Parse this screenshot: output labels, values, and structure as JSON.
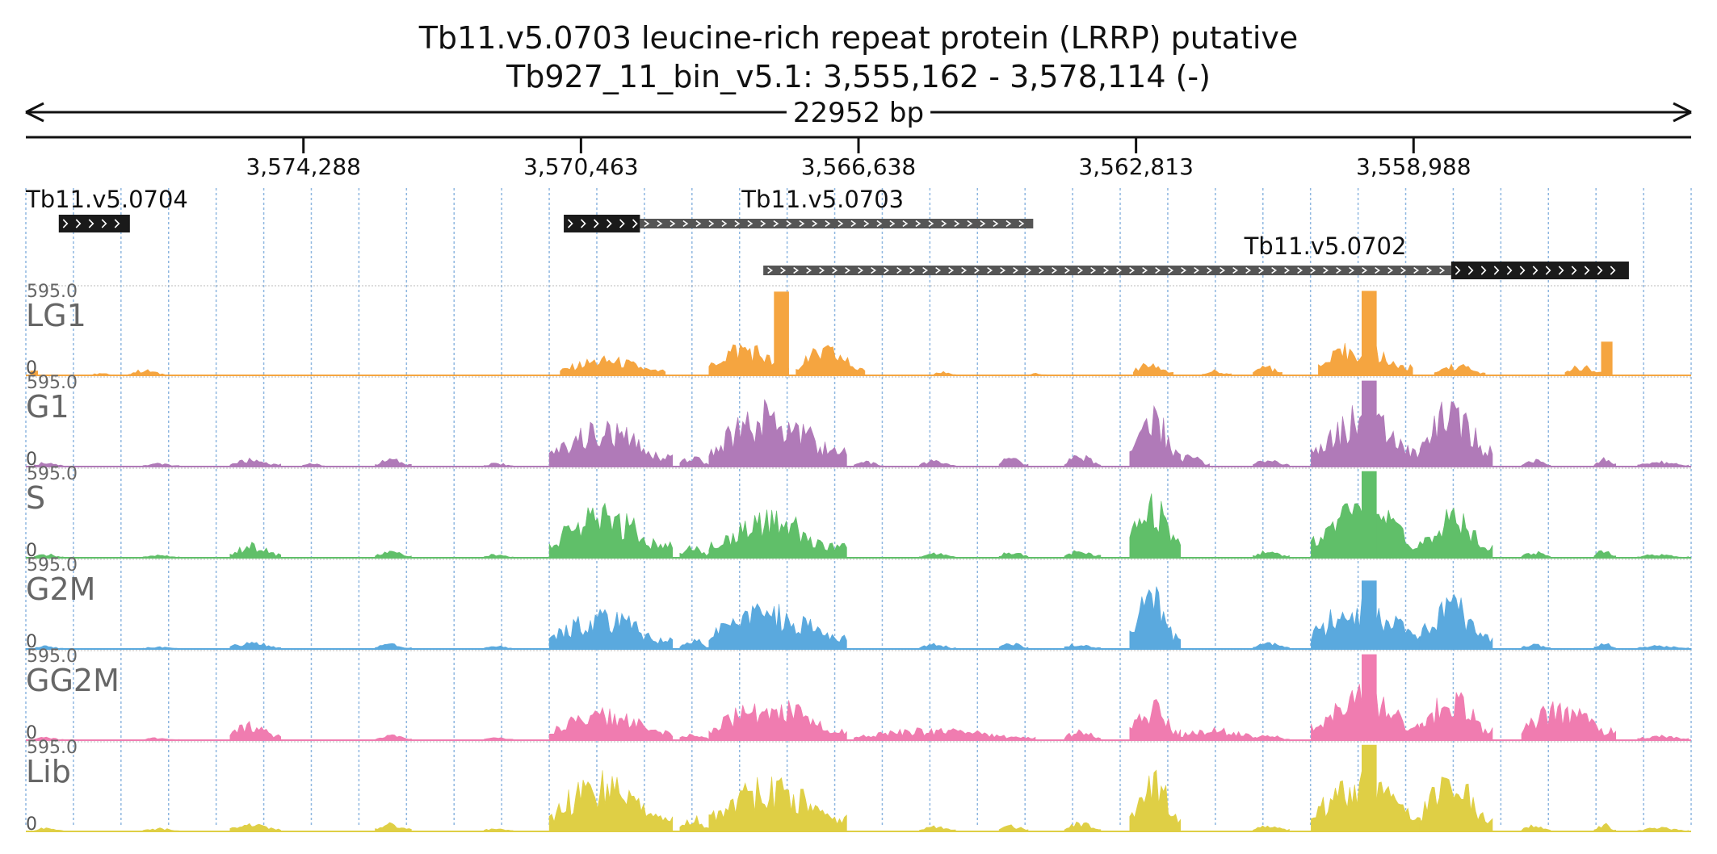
{
  "title": {
    "line1": "Tb11.v5.0703  leucine-rich repeat protein (LRRP)  putative",
    "line2": "Tb927_11_bin_v5.1: 3,555,162 - 3,578,114 (-)"
  },
  "span_label": "22952 bp",
  "chart_data": {
    "type": "area",
    "genome_range": {
      "chromosome": "Tb927_11_bin_v5.1",
      "start": 3555162,
      "end": 3578114,
      "strand": "-"
    },
    "x_ticks": [
      {
        "label": "3,574,288",
        "pos": 3574288
      },
      {
        "label": "3,570,463",
        "pos": 3570463
      },
      {
        "label": "3,566,638",
        "pos": 3566638
      },
      {
        "label": "3,562,813",
        "pos": 3562813
      },
      {
        "label": "3,558,988",
        "pos": 3558988
      }
    ],
    "genes": [
      {
        "name": "Tb11.v5.0704",
        "start": 3577660,
        "end": 3576680,
        "label_row": 0,
        "segments": [
          {
            "kind": "cds",
            "start": 3577660,
            "end": 3576680
          }
        ]
      },
      {
        "name": "Tb11.v5.0703",
        "start": 3570700,
        "end": 3564230,
        "label_row": 0,
        "segments": [
          {
            "kind": "cds",
            "start": 3570700,
            "end": 3569650
          },
          {
            "kind": "utr",
            "start": 3569650,
            "end": 3564230
          }
        ]
      },
      {
        "name": "Tb11.v5.0702",
        "start": 3567950,
        "end": 3556020,
        "label_row": 1,
        "segments": [
          {
            "kind": "utr",
            "start": 3567950,
            "end": 3558470
          },
          {
            "kind": "cds",
            "start": 3558470,
            "end": 3556020
          }
        ]
      }
    ],
    "y_range": [
      0,
      595.0
    ],
    "tracks": [
      {
        "name": "LG1",
        "color": "#f5a540",
        "ymax_label": "595.0",
        "ymin_label": "0",
        "peaks": [
          {
            "start": 3577200,
            "end": 3576900,
            "height": 20
          },
          {
            "start": 3576700,
            "end": 3576200,
            "height": 45
          },
          {
            "start": 3578050,
            "end": 3577950,
            "height": 30
          },
          {
            "start": 3570750,
            "end": 3569300,
            "height": 140
          },
          {
            "start": 3568700,
            "end": 3567600,
            "height": 260
          },
          {
            "start": 3567800,
            "end": 3567600,
            "height": 575
          },
          {
            "start": 3567500,
            "end": 3566550,
            "height": 220
          },
          {
            "start": 3565600,
            "end": 3565300,
            "height": 30
          },
          {
            "start": 3564300,
            "end": 3564050,
            "height": 20
          },
          {
            "start": 3562850,
            "end": 3562300,
            "height": 120
          },
          {
            "start": 3561900,
            "end": 3561500,
            "height": 40
          },
          {
            "start": 3561200,
            "end": 3560800,
            "height": 80
          },
          {
            "start": 3560300,
            "end": 3559000,
            "height": 250
          },
          {
            "start": 3559700,
            "end": 3559500,
            "height": 580
          },
          {
            "start": 3558700,
            "end": 3558000,
            "height": 90
          },
          {
            "start": 3556900,
            "end": 3556400,
            "height": 80
          },
          {
            "start": 3556400,
            "end": 3556250,
            "height": 230
          }
        ]
      },
      {
        "name": "G1",
        "color": "#b07ab8",
        "ymax_label": "595.0",
        "ymin_label": "0",
        "peaks": [
          {
            "start": 3578000,
            "end": 3577600,
            "height": 40
          },
          {
            "start": 3576500,
            "end": 3576000,
            "height": 25
          },
          {
            "start": 3575300,
            "end": 3574600,
            "height": 60
          },
          {
            "start": 3574300,
            "end": 3574000,
            "height": 30
          },
          {
            "start": 3573300,
            "end": 3572800,
            "height": 60
          },
          {
            "start": 3571800,
            "end": 3571400,
            "height": 30
          },
          {
            "start": 3570900,
            "end": 3569200,
            "height": 330
          },
          {
            "start": 3569100,
            "end": 3568700,
            "height": 90
          },
          {
            "start": 3568700,
            "end": 3566800,
            "height": 470
          },
          {
            "start": 3566700,
            "end": 3566300,
            "height": 40
          },
          {
            "start": 3565800,
            "end": 3565300,
            "height": 50
          },
          {
            "start": 3564700,
            "end": 3564300,
            "height": 80
          },
          {
            "start": 3563800,
            "end": 3563300,
            "height": 90
          },
          {
            "start": 3562900,
            "end": 3562200,
            "height": 470
          },
          {
            "start": 3562300,
            "end": 3561800,
            "height": 90
          },
          {
            "start": 3561200,
            "end": 3560700,
            "height": 60
          },
          {
            "start": 3560400,
            "end": 3558800,
            "height": 440
          },
          {
            "start": 3559700,
            "end": 3559500,
            "height": 590
          },
          {
            "start": 3558900,
            "end": 3557900,
            "height": 500
          },
          {
            "start": 3557500,
            "end": 3557100,
            "height": 60
          },
          {
            "start": 3556500,
            "end": 3556200,
            "height": 70
          },
          {
            "start": 3555900,
            "end": 3555200,
            "height": 40
          }
        ]
      },
      {
        "name": "S",
        "color": "#60bf69",
        "ymax_label": "595.0",
        "ymin_label": "0",
        "peaks": [
          {
            "start": 3578000,
            "end": 3577600,
            "height": 30
          },
          {
            "start": 3576500,
            "end": 3576000,
            "height": 25
          },
          {
            "start": 3575300,
            "end": 3574600,
            "height": 110
          },
          {
            "start": 3573300,
            "end": 3572800,
            "height": 55
          },
          {
            "start": 3571800,
            "end": 3571400,
            "height": 30
          },
          {
            "start": 3570900,
            "end": 3569200,
            "height": 380
          },
          {
            "start": 3569100,
            "end": 3568700,
            "height": 110
          },
          {
            "start": 3568700,
            "end": 3566800,
            "height": 340
          },
          {
            "start": 3565800,
            "end": 3565300,
            "height": 40
          },
          {
            "start": 3564700,
            "end": 3564300,
            "height": 60
          },
          {
            "start": 3563800,
            "end": 3563300,
            "height": 60
          },
          {
            "start": 3562900,
            "end": 3562200,
            "height": 490
          },
          {
            "start": 3561200,
            "end": 3560700,
            "height": 60
          },
          {
            "start": 3560400,
            "end": 3558800,
            "height": 440
          },
          {
            "start": 3559700,
            "end": 3559500,
            "height": 595
          },
          {
            "start": 3558900,
            "end": 3557900,
            "height": 350
          },
          {
            "start": 3557500,
            "end": 3557100,
            "height": 50
          },
          {
            "start": 3556500,
            "end": 3556200,
            "height": 60
          },
          {
            "start": 3555900,
            "end": 3555200,
            "height": 30
          }
        ]
      },
      {
        "name": "G2M",
        "color": "#5aa9de",
        "ymax_label": "595.0",
        "ymin_label": "0",
        "peaks": [
          {
            "start": 3578000,
            "end": 3577600,
            "height": 25
          },
          {
            "start": 3576500,
            "end": 3576000,
            "height": 20
          },
          {
            "start": 3575300,
            "end": 3574600,
            "height": 60
          },
          {
            "start": 3573300,
            "end": 3572800,
            "height": 40
          },
          {
            "start": 3571800,
            "end": 3571400,
            "height": 25
          },
          {
            "start": 3570900,
            "end": 3569200,
            "height": 290
          },
          {
            "start": 3569100,
            "end": 3568700,
            "height": 90
          },
          {
            "start": 3568700,
            "end": 3566800,
            "height": 350
          },
          {
            "start": 3565800,
            "end": 3565300,
            "height": 40
          },
          {
            "start": 3564700,
            "end": 3564300,
            "height": 50
          },
          {
            "start": 3563800,
            "end": 3563300,
            "height": 50
          },
          {
            "start": 3562900,
            "end": 3562200,
            "height": 450
          },
          {
            "start": 3561200,
            "end": 3560700,
            "height": 50
          },
          {
            "start": 3560400,
            "end": 3558800,
            "height": 400
          },
          {
            "start": 3559700,
            "end": 3559500,
            "height": 470
          },
          {
            "start": 3558900,
            "end": 3557900,
            "height": 400
          },
          {
            "start": 3557500,
            "end": 3557100,
            "height": 40
          },
          {
            "start": 3556500,
            "end": 3556200,
            "height": 50
          },
          {
            "start": 3555900,
            "end": 3555200,
            "height": 30
          }
        ]
      },
      {
        "name": "GG2M",
        "color": "#f07cb0",
        "ymax_label": "595.0",
        "ymin_label": "0",
        "peaks": [
          {
            "start": 3578000,
            "end": 3577600,
            "height": 25
          },
          {
            "start": 3576500,
            "end": 3576000,
            "height": 20
          },
          {
            "start": 3575300,
            "end": 3574600,
            "height": 150
          },
          {
            "start": 3573300,
            "end": 3572800,
            "height": 40
          },
          {
            "start": 3571800,
            "end": 3571400,
            "height": 25
          },
          {
            "start": 3570900,
            "end": 3569200,
            "height": 230
          },
          {
            "start": 3569100,
            "end": 3568700,
            "height": 60
          },
          {
            "start": 3568700,
            "end": 3566800,
            "height": 310
          },
          {
            "start": 3566700,
            "end": 3564200,
            "height": 90
          },
          {
            "start": 3563800,
            "end": 3563300,
            "height": 80
          },
          {
            "start": 3562900,
            "end": 3562200,
            "height": 300
          },
          {
            "start": 3562300,
            "end": 3561000,
            "height": 90
          },
          {
            "start": 3561200,
            "end": 3560700,
            "height": 40
          },
          {
            "start": 3560400,
            "end": 3558800,
            "height": 400
          },
          {
            "start": 3559700,
            "end": 3559500,
            "height": 590
          },
          {
            "start": 3558900,
            "end": 3557900,
            "height": 360
          },
          {
            "start": 3557500,
            "end": 3556200,
            "height": 290
          },
          {
            "start": 3555900,
            "end": 3555200,
            "height": 40
          }
        ]
      },
      {
        "name": "Lib",
        "color": "#dfcf45",
        "ymax_label": "595.0",
        "ymin_label": "0",
        "peaks": [
          {
            "start": 3578000,
            "end": 3577600,
            "height": 30
          },
          {
            "start": 3576500,
            "end": 3576000,
            "height": 25
          },
          {
            "start": 3575300,
            "end": 3574600,
            "height": 70
          },
          {
            "start": 3573300,
            "end": 3572800,
            "height": 70
          },
          {
            "start": 3571800,
            "end": 3571400,
            "height": 30
          },
          {
            "start": 3570900,
            "end": 3569200,
            "height": 430
          },
          {
            "start": 3569100,
            "end": 3568700,
            "height": 120
          },
          {
            "start": 3568700,
            "end": 3566800,
            "height": 400
          },
          {
            "start": 3565800,
            "end": 3565300,
            "height": 40
          },
          {
            "start": 3564700,
            "end": 3564300,
            "height": 50
          },
          {
            "start": 3563800,
            "end": 3563300,
            "height": 70
          },
          {
            "start": 3562900,
            "end": 3562200,
            "height": 480
          },
          {
            "start": 3561200,
            "end": 3560700,
            "height": 60
          },
          {
            "start": 3560400,
            "end": 3558800,
            "height": 430
          },
          {
            "start": 3559700,
            "end": 3559500,
            "height": 595
          },
          {
            "start": 3558900,
            "end": 3557900,
            "height": 450
          },
          {
            "start": 3557500,
            "end": 3557100,
            "height": 60
          },
          {
            "start": 3556500,
            "end": 3556200,
            "height": 60
          },
          {
            "start": 3555900,
            "end": 3555200,
            "height": 30
          }
        ]
      }
    ]
  }
}
